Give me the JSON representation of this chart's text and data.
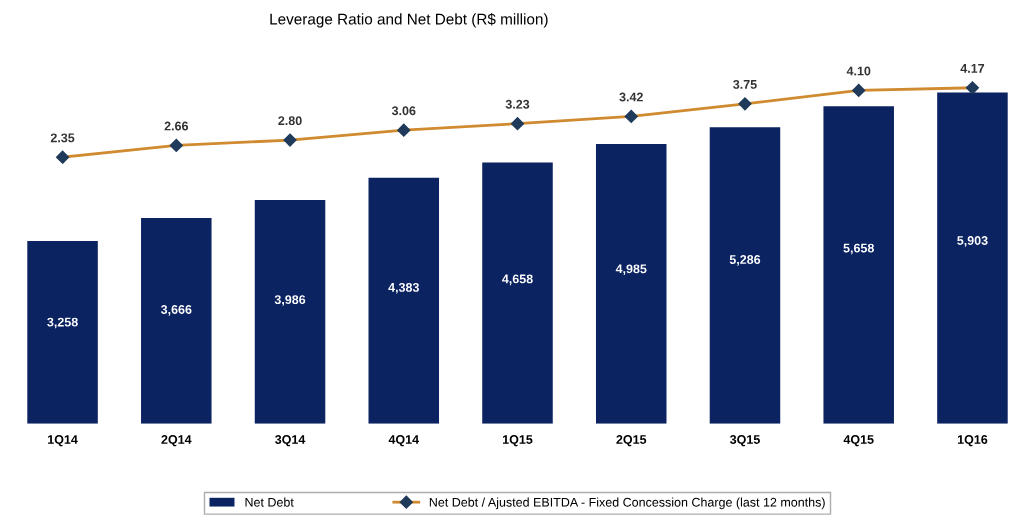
{
  "chart_data": {
    "type": "bar",
    "title": "Leverage Ratio and Net Debt (R$ million)",
    "categories": [
      "1Q14",
      "2Q14",
      "3Q14",
      "4Q14",
      "1Q15",
      "2Q15",
      "3Q15",
      "4Q15",
      "1Q16"
    ],
    "series": [
      {
        "name": "Net Debt",
        "color": "#0b2361",
        "values": [
          3258,
          3666,
          3986,
          4383,
          4658,
          4985,
          5286,
          5658,
          5903
        ],
        "value_labels": [
          "3,258",
          "3,666",
          "3,986",
          "4,383",
          "4,658",
          "4,985",
          "5,286",
          "5,658",
          "5,903"
        ]
      },
      {
        "name": "Net Debt / Ajusted EBITDA - Fixed Concession Charge (last 12 months)",
        "type": "line",
        "axis": "y2",
        "color": "#d08a30",
        "marker": "diamond",
        "values": [
          2.35,
          2.66,
          2.8,
          3.06,
          3.23,
          3.42,
          3.75,
          4.1,
          4.17
        ],
        "value_labels": [
          "2.35",
          "2.66",
          "2.80",
          "3.06",
          "3.23",
          "3.42",
          "3.75",
          "4.10",
          "4.17"
        ]
      }
    ],
    "grid": false,
    "legend": "bottom"
  }
}
